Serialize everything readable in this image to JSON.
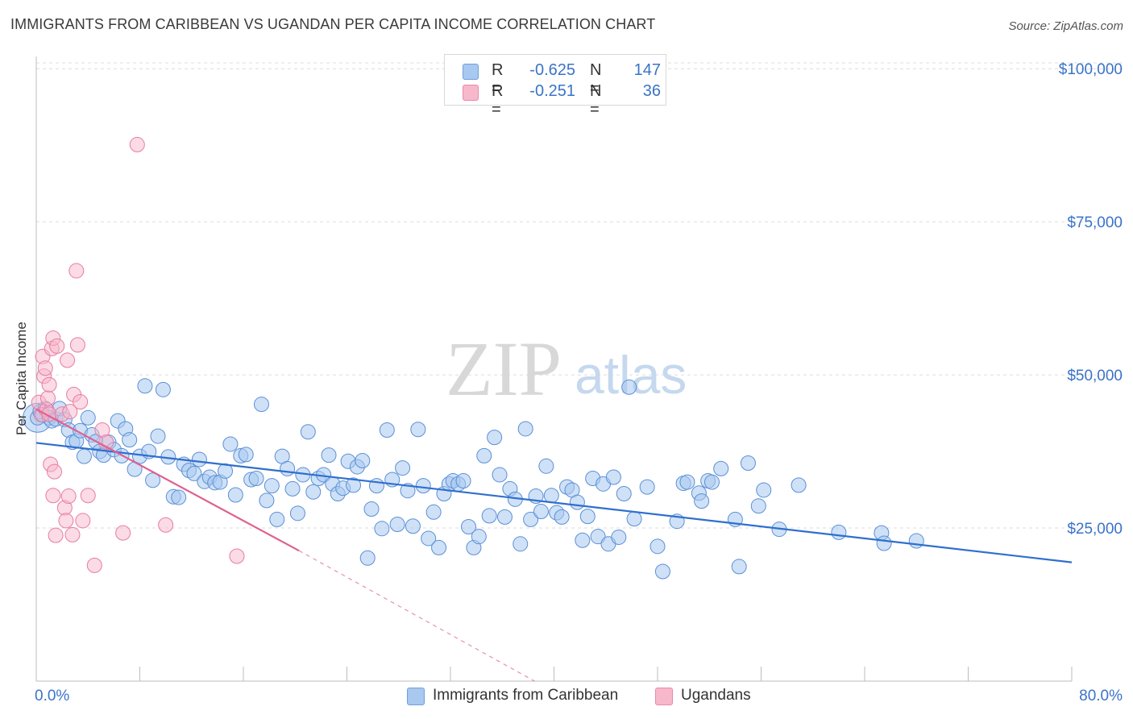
{
  "header": {
    "title": "IMMIGRANTS FROM CARIBBEAN VS UGANDAN PER CAPITA INCOME CORRELATION CHART",
    "source": "Source: ZipAtlas.com"
  },
  "watermark": {
    "zip": "ZIP",
    "atlas": "atlas"
  },
  "legend_top": {
    "rows": [
      {
        "r_label": "R =",
        "r_value": "-0.625",
        "n_label": "N =",
        "n_value": "147",
        "color": "#a8c8f0"
      },
      {
        "r_label": "R =",
        "r_value": "-0.251",
        "n_label": "N =",
        "n_value": "36",
        "color": "#f7b8cb"
      }
    ]
  },
  "legend_bottom": {
    "items": [
      {
        "label": "Immigrants from Caribbean",
        "color": "#a8c8f0"
      },
      {
        "label": "Ugandans",
        "color": "#f7b8cb"
      }
    ]
  },
  "chart_data": {
    "type": "scatter",
    "title": "IMMIGRANTS FROM CARIBBEAN VS UGANDAN PER CAPITA INCOME CORRELATION CHART",
    "xlabel": "",
    "ylabel": "Per Capita Income",
    "x_tick_labels": [
      "0.0%",
      "80.0%"
    ],
    "y_tick_labels": [
      "$25,000",
      "$50,000",
      "$75,000",
      "$100,000"
    ],
    "y_ticks": [
      25000,
      50000,
      75000,
      100000
    ],
    "xlim": [
      0,
      80
    ],
    "ylim": [
      0,
      102000
    ],
    "grid": true,
    "legend_position": "top-center",
    "colors": {
      "blue": "#5b8fd6",
      "blue_fill": "#a8c8f0",
      "blue_line": "#2f6fce",
      "pink": "#e87ca0",
      "pink_fill": "#f7b8cb",
      "pink_line": "#e0608f",
      "tick_text": "#3a73c8"
    },
    "series": [
      {
        "name": "Immigrants from Caribbean",
        "color": "#5b8fd6",
        "trend": {
          "x": [
            0,
            80
          ],
          "y": [
            38900,
            19400
          ]
        },
        "points": [
          [
            0.1,
            43000
          ],
          [
            0.3,
            44000
          ],
          [
            0.5,
            43500
          ],
          [
            0.7,
            44500
          ],
          [
            1.0,
            43000
          ],
          [
            1.2,
            42500
          ],
          [
            1.5,
            42800
          ],
          [
            1.8,
            44500
          ],
          [
            2.2,
            42700
          ],
          [
            2.5,
            41000
          ],
          [
            2.8,
            39000
          ],
          [
            3.1,
            39200
          ],
          [
            3.4,
            40900
          ],
          [
            3.7,
            36700
          ],
          [
            4.0,
            43000
          ],
          [
            4.3,
            40200
          ],
          [
            4.6,
            39100
          ],
          [
            4.9,
            37500
          ],
          [
            5.2,
            36900
          ],
          [
            5.6,
            39000
          ],
          [
            6.0,
            37800
          ],
          [
            6.3,
            42500
          ],
          [
            6.6,
            36800
          ],
          [
            6.9,
            41200
          ],
          [
            7.2,
            39400
          ],
          [
            7.6,
            34600
          ],
          [
            8.0,
            36700
          ],
          [
            8.4,
            48200
          ],
          [
            8.7,
            37500
          ],
          [
            9.0,
            32800
          ],
          [
            9.4,
            40000
          ],
          [
            9.8,
            47600
          ],
          [
            10.2,
            36600
          ],
          [
            10.6,
            30100
          ],
          [
            11.0,
            30000
          ],
          [
            11.4,
            35400
          ],
          [
            11.8,
            34400
          ],
          [
            12.2,
            33900
          ],
          [
            12.6,
            36200
          ],
          [
            13.0,
            32600
          ],
          [
            13.4,
            33300
          ],
          [
            13.8,
            32400
          ],
          [
            14.2,
            32500
          ],
          [
            14.6,
            34300
          ],
          [
            15.0,
            38700
          ],
          [
            15.4,
            30400
          ],
          [
            15.8,
            36800
          ],
          [
            16.2,
            37000
          ],
          [
            16.6,
            32900
          ],
          [
            17.0,
            33100
          ],
          [
            17.4,
            45200
          ],
          [
            17.8,
            29500
          ],
          [
            18.2,
            31900
          ],
          [
            18.6,
            26400
          ],
          [
            19.0,
            36700
          ],
          [
            19.4,
            34700
          ],
          [
            19.8,
            31400
          ],
          [
            20.2,
            27400
          ],
          [
            20.6,
            33700
          ],
          [
            21.0,
            40700
          ],
          [
            21.4,
            30900
          ],
          [
            21.8,
            33100
          ],
          [
            22.2,
            33700
          ],
          [
            22.6,
            36900
          ],
          [
            22.9,
            32200
          ],
          [
            23.3,
            30600
          ],
          [
            23.7,
            31500
          ],
          [
            24.1,
            35900
          ],
          [
            24.5,
            32000
          ],
          [
            24.8,
            35000
          ],
          [
            25.2,
            36000
          ],
          [
            25.6,
            20100
          ],
          [
            25.9,
            28100
          ],
          [
            26.3,
            31900
          ],
          [
            26.7,
            24900
          ],
          [
            27.1,
            41000
          ],
          [
            27.5,
            32900
          ],
          [
            27.9,
            25600
          ],
          [
            28.3,
            34800
          ],
          [
            28.7,
            31100
          ],
          [
            29.1,
            25300
          ],
          [
            29.5,
            41100
          ],
          [
            29.9,
            31900
          ],
          [
            30.3,
            23300
          ],
          [
            30.7,
            27600
          ],
          [
            31.1,
            21800
          ],
          [
            31.5,
            30600
          ],
          [
            31.9,
            32200
          ],
          [
            32.2,
            32700
          ],
          [
            32.6,
            32200
          ],
          [
            33.0,
            32700
          ],
          [
            33.4,
            25200
          ],
          [
            33.8,
            21800
          ],
          [
            34.2,
            23600
          ],
          [
            34.6,
            36800
          ],
          [
            35.0,
            27000
          ],
          [
            35.4,
            39800
          ],
          [
            35.8,
            33700
          ],
          [
            36.2,
            26800
          ],
          [
            36.6,
            31400
          ],
          [
            37.0,
            29700
          ],
          [
            37.4,
            22400
          ],
          [
            37.8,
            41200
          ],
          [
            38.2,
            26400
          ],
          [
            38.6,
            30200
          ],
          [
            39.0,
            27700
          ],
          [
            39.4,
            35100
          ],
          [
            39.8,
            30300
          ],
          [
            40.2,
            27500
          ],
          [
            40.6,
            26800
          ],
          [
            41.0,
            31700
          ],
          [
            41.4,
            31200
          ],
          [
            41.8,
            29200
          ],
          [
            42.2,
            23000
          ],
          [
            42.6,
            26900
          ],
          [
            43.0,
            33100
          ],
          [
            43.4,
            23600
          ],
          [
            43.8,
            32200
          ],
          [
            44.2,
            22400
          ],
          [
            44.6,
            33300
          ],
          [
            45.0,
            23500
          ],
          [
            45.4,
            30600
          ],
          [
            45.8,
            48000
          ],
          [
            46.2,
            26500
          ],
          [
            47.2,
            31700
          ],
          [
            48.0,
            22000
          ],
          [
            48.4,
            17900
          ],
          [
            49.5,
            26100
          ],
          [
            50.0,
            32300
          ],
          [
            50.3,
            32500
          ],
          [
            51.2,
            30700
          ],
          [
            51.4,
            29400
          ],
          [
            51.9,
            32700
          ],
          [
            52.2,
            32500
          ],
          [
            52.9,
            34700
          ],
          [
            54.0,
            26400
          ],
          [
            54.3,
            18700
          ],
          [
            55.0,
            35600
          ],
          [
            55.8,
            28600
          ],
          [
            56.2,
            31200
          ],
          [
            57.4,
            24800
          ],
          [
            58.9,
            32000
          ],
          [
            62.0,
            24300
          ],
          [
            65.3,
            24200
          ],
          [
            65.5,
            22500
          ],
          [
            68.0,
            22900
          ]
        ]
      },
      {
        "name": "Ugandans",
        "color": "#e87ca0",
        "trend": {
          "x": [
            0,
            20.3
          ],
          "y": [
            44400,
            21300
          ]
        },
        "trend_dashed": {
          "x": [
            20.3,
            38.5
          ],
          "y": [
            21300,
            0
          ]
        },
        "points": [
          [
            0.2,
            45500
          ],
          [
            0.4,
            43500
          ],
          [
            0.5,
            53000
          ],
          [
            0.6,
            49800
          ],
          [
            0.7,
            51100
          ],
          [
            0.8,
            44300
          ],
          [
            0.9,
            46200
          ],
          [
            1.0,
            48400
          ],
          [
            1.0,
            43600
          ],
          [
            1.1,
            35400
          ],
          [
            1.2,
            54300
          ],
          [
            1.3,
            56000
          ],
          [
            1.3,
            30300
          ],
          [
            1.4,
            34200
          ],
          [
            1.5,
            23800
          ],
          [
            1.6,
            54700
          ],
          [
            2.0,
            43600
          ],
          [
            2.2,
            28300
          ],
          [
            2.3,
            26200
          ],
          [
            2.4,
            52400
          ],
          [
            2.5,
            30200
          ],
          [
            2.6,
            44000
          ],
          [
            2.8,
            23900
          ],
          [
            2.9,
            46800
          ],
          [
            3.1,
            67000
          ],
          [
            3.2,
            54900
          ],
          [
            3.4,
            45600
          ],
          [
            3.6,
            26200
          ],
          [
            4.0,
            30300
          ],
          [
            4.5,
            18900
          ],
          [
            5.1,
            41000
          ],
          [
            6.7,
            24200
          ],
          [
            7.8,
            87600
          ],
          [
            10.0,
            25500
          ],
          [
            15.5,
            20400
          ],
          [
            5.4,
            39000
          ]
        ]
      }
    ]
  }
}
